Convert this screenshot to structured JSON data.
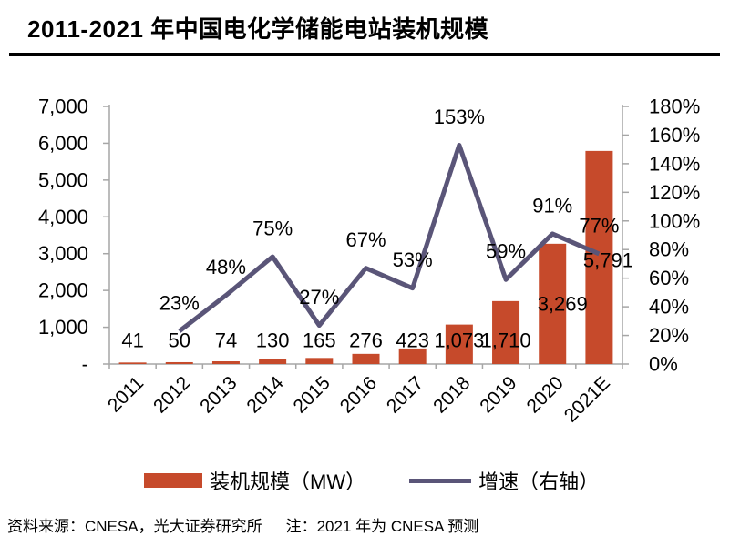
{
  "title": "2011-2021 年中国电化学储能电站装机规模",
  "chart_data": {
    "type": "bar",
    "subtype": "bar-line-combo",
    "title": "2011-2021 年中国电化学储能电站装机规模",
    "categories": [
      "2011",
      "2012",
      "2013",
      "2014",
      "2015",
      "2016",
      "2017",
      "2018",
      "2019",
      "2020",
      "2021E"
    ],
    "series": [
      {
        "name": "装机规模（MW）",
        "type": "bar",
        "axis": "left",
        "values": [
          41,
          50,
          74,
          130,
          165,
          276,
          423,
          1073,
          1710,
          3269,
          5791
        ],
        "labels": [
          "41",
          "50",
          "74",
          "130",
          "165",
          "276",
          "423",
          "1,073",
          "1,710",
          "3,269",
          "5,791"
        ]
      },
      {
        "name": "增速（右轴）",
        "type": "line",
        "axis": "right",
        "values": [
          null,
          23,
          48,
          75,
          27,
          67,
          53,
          153,
          59,
          91,
          77
        ],
        "labels": [
          null,
          "23%",
          "48%",
          "75%",
          "27%",
          "67%",
          "53%",
          "153%",
          "59%",
          "91%",
          "77%"
        ]
      }
    ],
    "left_axis": {
      "min": 0,
      "max": 7000,
      "step": 1000,
      "ticks": [
        "7,000",
        "6,000",
        "5,000",
        "4,000",
        "3,000",
        "2,000",
        "1,000",
        "-"
      ]
    },
    "right_axis": {
      "min": 0,
      "max": 180,
      "step": 20,
      "ticks": [
        "180%",
        "160%",
        "140%",
        "120%",
        "100%",
        "80%",
        "60%",
        "40%",
        "20%",
        "0%"
      ]
    },
    "grid": false,
    "legend_position": "bottom",
    "xlabel": "",
    "ylabel": ""
  },
  "legend": {
    "bar_label": "装机规模（MW）",
    "line_label": "增速（右轴）"
  },
  "footer": {
    "source": "资料来源：CNESA，光大证券研究所",
    "note": "注：2021 年为 CNESA 预测"
  },
  "colors": {
    "bar": "#C64A2B",
    "line": "#5A5578",
    "axis": "#A6A6A6",
    "text": "#000000"
  }
}
